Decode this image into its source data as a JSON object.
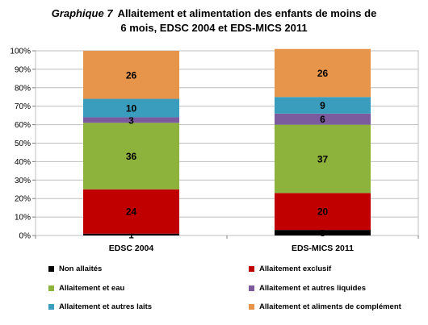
{
  "title": {
    "lead": "Graphique 7",
    "line1": "Allaitement et alimentation des enfants de moins de",
    "line2": "6 mois, EDSC 2004 et EDS-MICS 2011"
  },
  "chart_data": {
    "type": "bar",
    "stacked": true,
    "categories": [
      "EDSC 2004",
      "EDS-MICS 2011"
    ],
    "series": [
      {
        "name": "Non allaités",
        "values": [
          1,
          3
        ],
        "color": "#000000"
      },
      {
        "name": "Allaitement exclusif",
        "values": [
          24,
          20
        ],
        "color": "#c00000"
      },
      {
        "name": "Allaitement et eau",
        "values": [
          36,
          37
        ],
        "color": "#8db33d"
      },
      {
        "name": "Allaitement et autres liquides",
        "values": [
          3,
          6
        ],
        "color": "#7b5b9d"
      },
      {
        "name": "Allaitement et autres laits",
        "values": [
          10,
          9
        ],
        "color": "#3b9dbd"
      },
      {
        "name": "Allaitement et aliments de complément",
        "values": [
          26,
          26
        ],
        "color": "#e8954c"
      }
    ],
    "ylim": [
      0,
      100
    ],
    "yticks": [
      "0%",
      "10%",
      "20%",
      "30%",
      "40%",
      "50%",
      "60%",
      "70%",
      "80%",
      "90%",
      "100%"
    ],
    "grid": true,
    "legend_position": "bottom"
  }
}
